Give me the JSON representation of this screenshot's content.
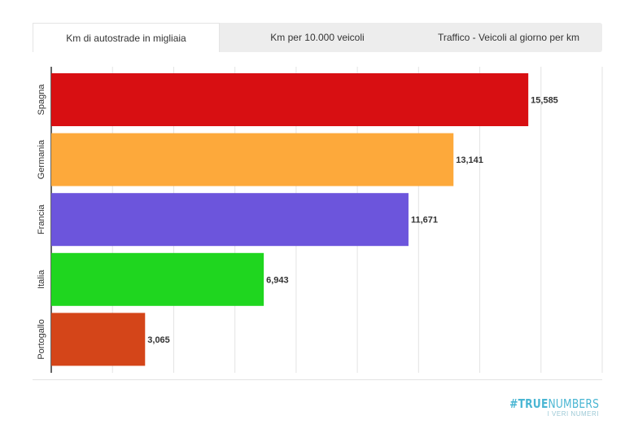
{
  "tabs": [
    {
      "label": "Km di autostrade in migliaia",
      "active": true
    },
    {
      "label": "Km per 10.000 veicoli",
      "active": false
    },
    {
      "label": "Traffico - Veicoli al giorno per km",
      "active": false
    }
  ],
  "brand": {
    "hash": "#",
    "bold": "TRUE",
    "light": "NUMBERS",
    "sub": "I VERI NUMERI"
  },
  "chart_data": {
    "type": "bar",
    "orientation": "horizontal",
    "categories": [
      "Spagna",
      "Germania",
      "Francia",
      "Italia",
      "Portogallo"
    ],
    "values": [
      15.585,
      13.141,
      11.671,
      6.943,
      3.065
    ],
    "labels": [
      "15,585",
      "13,141",
      "11,671",
      "6,943",
      "3,065"
    ],
    "colors": [
      "#d80f12",
      "#fda93b",
      "#6c55dc",
      "#1fd61f",
      "#d44519"
    ],
    "xlim": [
      0,
      18
    ],
    "grid": true
  }
}
